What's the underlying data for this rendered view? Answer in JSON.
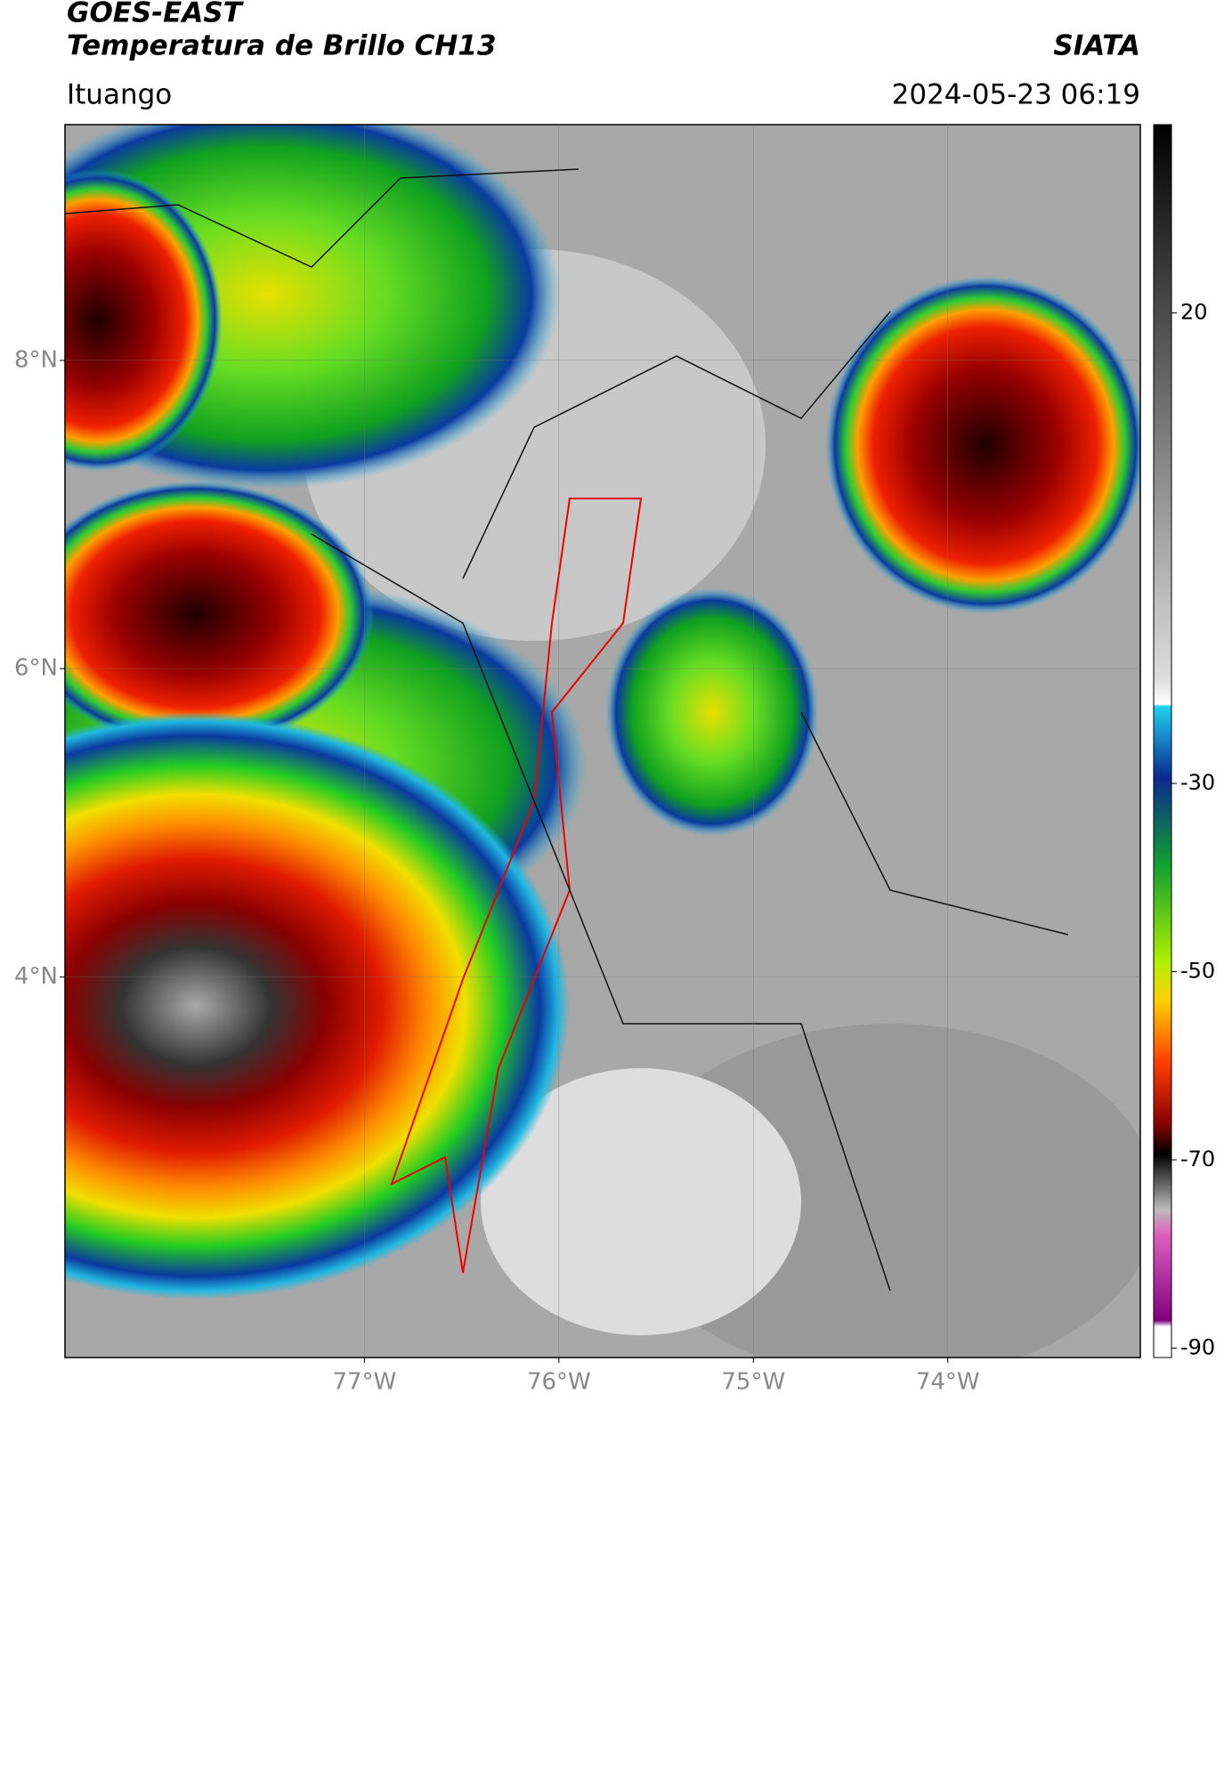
{
  "chart_data": {
    "type": "map",
    "title": "GOES-EAST",
    "subtitle": "Temperatura de Brillo CH13",
    "source": "SIATA",
    "location": "Ituango",
    "datetime": "2024-05-23 06:19",
    "xlim": [
      -78.54,
      -73.01
    ],
    "ylim": [
      1.53,
      9.53
    ],
    "xticks": [
      {
        "value": -77,
        "label": "77°W"
      },
      {
        "value": -76,
        "label": "76°W"
      },
      {
        "value": -75,
        "label": "75°W"
      },
      {
        "value": -74,
        "label": "74°W"
      }
    ],
    "yticks": [
      {
        "value": 4,
        "label": "4°N"
      },
      {
        "value": 6,
        "label": "6°N"
      },
      {
        "value": 8,
        "label": "8°N"
      }
    ],
    "grid": true,
    "colorbar": {
      "clim": [
        -91,
        40
      ],
      "ticks": [
        -90,
        -70,
        -50,
        -30,
        20
      ]
    }
  }
}
